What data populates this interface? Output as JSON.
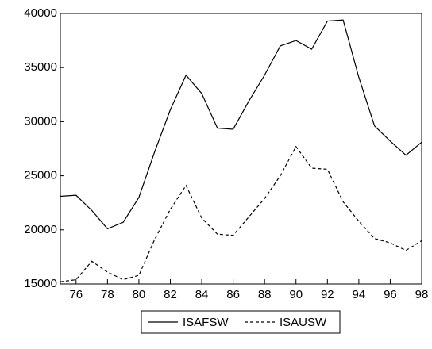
{
  "chart_data": {
    "type": "line",
    "x": [
      75,
      76,
      77,
      78,
      79,
      80,
      81,
      82,
      83,
      84,
      85,
      86,
      87,
      88,
      89,
      90,
      91,
      92,
      93,
      94,
      95,
      96,
      97,
      98
    ],
    "series": [
      {
        "name": "ISAFSW",
        "color": "#000000",
        "dash": "solid",
        "values": [
          23100,
          23200,
          21800,
          20100,
          20700,
          23000,
          27200,
          31100,
          34300,
          32600,
          29400,
          29300,
          31900,
          34300,
          37000,
          37500,
          36700,
          39300,
          39400,
          34100,
          29600,
          28200,
          26900,
          28100
        ]
      },
      {
        "name": "ISAUSW",
        "color": "#000000",
        "dash": "dashed",
        "values": [
          15200,
          15400,
          17100,
          16100,
          15400,
          15800,
          19100,
          21900,
          24100,
          21100,
          19600,
          19500,
          21200,
          22900,
          25000,
          27700,
          25700,
          25600,
          22600,
          20800,
          19200,
          18800,
          18100,
          19000
        ]
      }
    ],
    "xlim": [
      75,
      98
    ],
    "xticks": [
      76,
      78,
      80,
      82,
      84,
      86,
      88,
      90,
      92,
      94,
      96,
      98
    ],
    "ylim": [
      15000,
      40000
    ],
    "yticks": [
      15000,
      20000,
      25000,
      30000,
      35000,
      40000
    ],
    "grid": false,
    "legend": "bottom"
  }
}
